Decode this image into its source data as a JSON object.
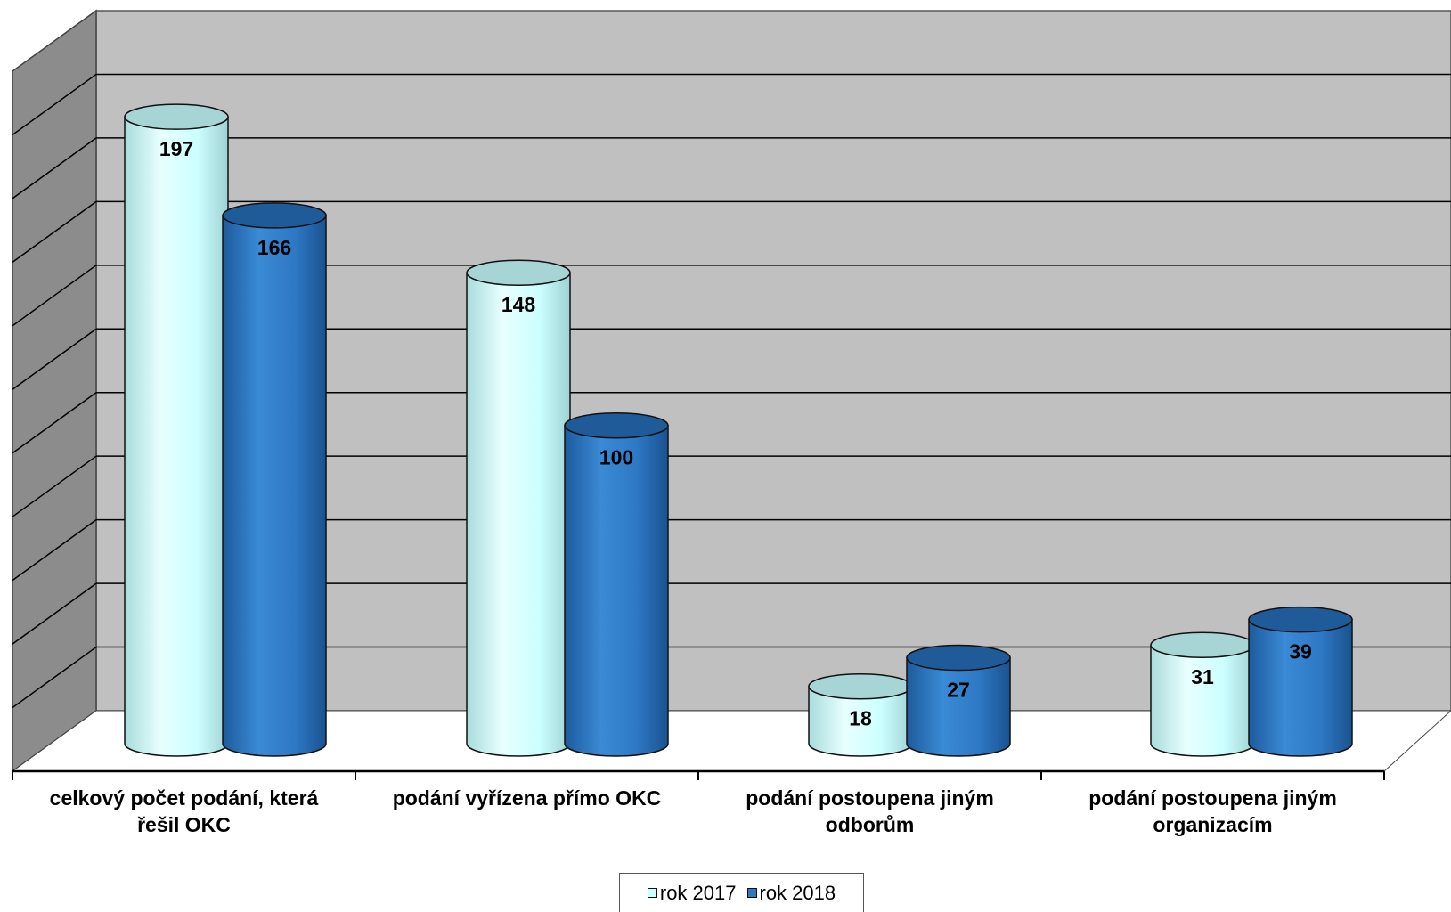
{
  "chart_data": {
    "type": "bar",
    "style": "3d-cylinder",
    "categories": [
      [
        "celkový počet podání, která",
        "řešil OKC"
      ],
      [
        "podání vyřízena přímo OKC"
      ],
      [
        "podání postoupena jiným",
        "odborům"
      ],
      [
        "podání postoupena jiným",
        "organizacím"
      ]
    ],
    "series": [
      {
        "name": "rok 2017",
        "values": [
          197,
          148,
          18,
          31
        ],
        "color": "#ccffff"
      },
      {
        "name": "rok 2018",
        "values": [
          166,
          100,
          27,
          39
        ],
        "color": "#2e78c4"
      }
    ],
    "ylim": [
      0,
      220
    ],
    "grid": true,
    "background_color": "#c0c0c0",
    "legend_position": "bottom",
    "title": "",
    "xlabel": "",
    "ylabel": ""
  },
  "legend": {
    "items": [
      "rok 2017",
      "rok 2018"
    ]
  }
}
